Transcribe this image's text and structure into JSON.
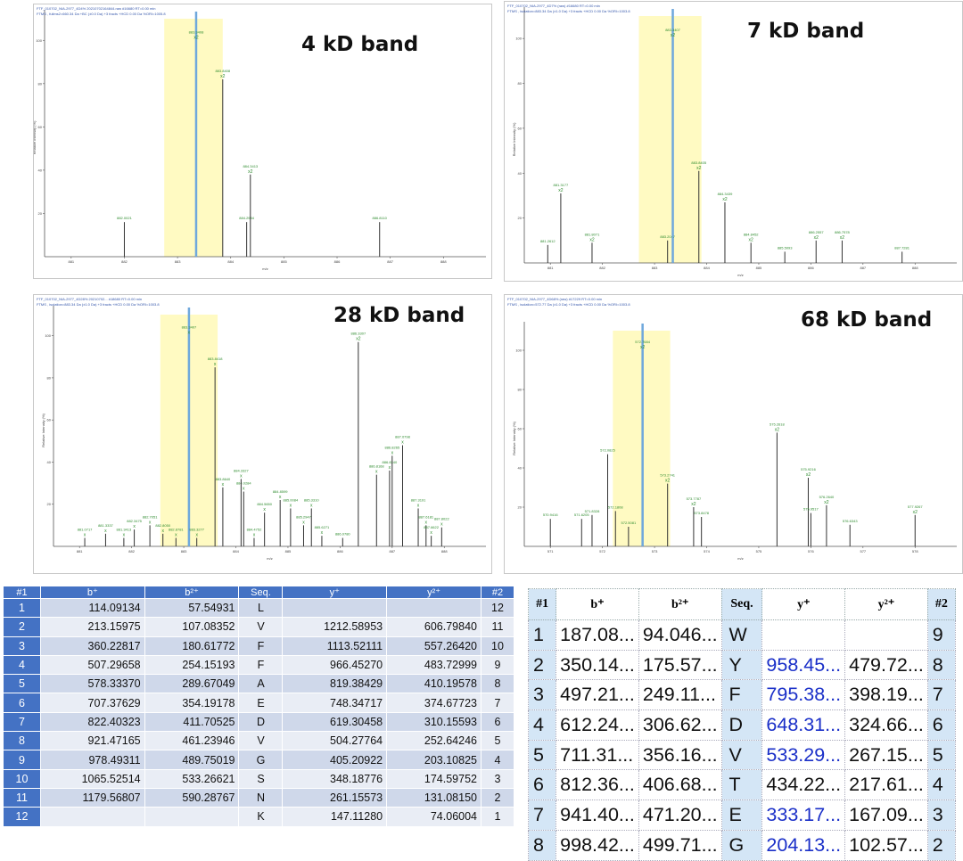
{
  "panels": [
    {
      "title": "4 kD band",
      "header_lines": [
        "FTF_010702_NIA-2977_4D4% 20210702164844.raw #16680 RT=0.00 min",
        "FTMS , fullms2=660.34 Da +BC (±0.0 Da) +3 fracts +HCD 0.00 Da %ORI=1005.8"
      ],
      "chart_data": {
        "type": "bar",
        "title": "4 kD band",
        "xlim": [
          880.5,
          888.8
        ],
        "ylim": [
          0,
          110
        ],
        "xlabel": "m/z",
        "ylabel": "Relative Intensity (%)",
        "yticks": [
          20,
          40,
          60,
          80,
          100
        ],
        "xticks": [
          881,
          882,
          883,
          884,
          885,
          886,
          887,
          888
        ],
        "highlight": [
          882.75,
          883.85
        ],
        "highlight_color": "#fffac2",
        "precursor": 883.35,
        "peaks": [
          {
            "x": 882.0,
            "y": 16,
            "label": "882.0021"
          },
          {
            "x": 883.35,
            "y": 100,
            "label": "883.3408",
            "ion": "x2"
          },
          {
            "x": 883.85,
            "y": 82,
            "label": "883.8408",
            "ion": "x2"
          },
          {
            "x": 884.3,
            "y": 16,
            "label": "884.2984"
          },
          {
            "x": 884.37,
            "y": 38,
            "label": "884.3413",
            "ion": "x2"
          },
          {
            "x": 886.8,
            "y": 16,
            "label": "886.8110"
          }
        ]
      }
    },
    {
      "title": "7 kD band",
      "header_lines": [
        "FTF_010702_NIA-2977_4D7% (raw) #16680 RT=0.00 min",
        "FTMS , isolation=883.34 Da (±1.0 Da) +3 fracts +HCD 0.00 Da %ORI=1003.8"
      ],
      "chart_data": {
        "type": "bar",
        "title": "7 kD band",
        "xlim": [
          880.5,
          888.8
        ],
        "ylim": [
          0,
          110
        ],
        "xlabel": "m/z",
        "ylabel": "Relative Intensity (%)",
        "yticks": [
          20,
          40,
          60,
          80,
          100
        ],
        "xticks": [
          881,
          882,
          883,
          884,
          885,
          886,
          887,
          888
        ],
        "highlight": [
          882.7,
          883.9
        ],
        "highlight_color": "#fffac2",
        "precursor": 883.35,
        "peaks": [
          {
            "x": 880.95,
            "y": 8,
            "label": "881.2612"
          },
          {
            "x": 881.2,
            "y": 31,
            "label": "881.3177",
            "ion": "x2"
          },
          {
            "x": 881.8,
            "y": 9,
            "label": "881.8071",
            "ion": "x2"
          },
          {
            "x": 883.25,
            "y": 10,
            "label": "883.2047"
          },
          {
            "x": 883.35,
            "y": 100,
            "label": "883.3407",
            "ion": "x2"
          },
          {
            "x": 883.85,
            "y": 41,
            "label": "883.8405",
            "ion": "x2"
          },
          {
            "x": 884.35,
            "y": 27,
            "label": "884.3439",
            "ion": "x2"
          },
          {
            "x": 884.85,
            "y": 9,
            "label": "884.8452",
            "ion": "x2"
          },
          {
            "x": 885.5,
            "y": 5,
            "label": "885.5093"
          },
          {
            "x": 886.1,
            "y": 10,
            "label": "886.2557",
            "ion": "x2"
          },
          {
            "x": 886.6,
            "y": 10,
            "label": "886.7578",
            "ion": "x2"
          },
          {
            "x": 887.75,
            "y": 5,
            "label": "887.7281"
          }
        ]
      }
    },
    {
      "title": "28 kD band",
      "header_lines": [
        "FTF_010702_NIA-2977_4D28% 20210702... #18680 RT=0.00 min",
        "FTMS , isolation=883.34 Da (±1.0 Da) +3 fracts +HCD 0.00 Da %ORI=1003.8"
      ],
      "chart_data": {
        "type": "bar",
        "title": "28 kD band",
        "xlim": [
          880.5,
          888.8
        ],
        "ylim": [
          0,
          110
        ],
        "xlabel": "m/z",
        "ylabel": "Relative Intensity (%)",
        "yticks": [
          20,
          40,
          60,
          80,
          100
        ],
        "xticks": [
          881,
          882,
          883,
          884,
          885,
          886,
          887,
          888
        ],
        "highlight": [
          882.55,
          883.65
        ],
        "highlight_color": "#fffac2",
        "precursor": 883.1,
        "peaks": [
          {
            "x": 881.1,
            "y": 4,
            "label": "881.0717",
            "ion": "x"
          },
          {
            "x": 881.5,
            "y": 6,
            "label": "881.3337",
            "ion": "x"
          },
          {
            "x": 881.85,
            "y": 4,
            "label": "881.3413",
            "ion": "x"
          },
          {
            "x": 882.05,
            "y": 8,
            "label": "882.3475",
            "ion": "x"
          },
          {
            "x": 882.35,
            "y": 10,
            "label": "882.7051",
            "ion": "x"
          },
          {
            "x": 882.6,
            "y": 6,
            "label": "882.8050",
            "ion": "x"
          },
          {
            "x": 882.85,
            "y": 4,
            "label": "882.8781",
            "ion": "x"
          },
          {
            "x": 883.1,
            "y": 100,
            "label": "883.3407",
            "ion": "x"
          },
          {
            "x": 883.25,
            "y": 4,
            "label": "883.3277",
            "ion": "x"
          },
          {
            "x": 883.6,
            "y": 85,
            "label": "883.8418",
            "ion": "x"
          },
          {
            "x": 883.75,
            "y": 28,
            "label": "883.8640",
            "ion": "x"
          },
          {
            "x": 884.15,
            "y": 26,
            "label": "884.0284",
            "ion": "x"
          },
          {
            "x": 884.1,
            "y": 32,
            "label": "884.3327",
            "ion": "x"
          },
          {
            "x": 884.35,
            "y": 4,
            "label": "884.4752",
            "ion": "x"
          },
          {
            "x": 884.55,
            "y": 16,
            "label": "884.5650",
            "ion": "x"
          },
          {
            "x": 884.85,
            "y": 22,
            "label": "884.8599",
            "ion": "x"
          },
          {
            "x": 885.05,
            "y": 18,
            "label": "885.0084",
            "ion": "x"
          },
          {
            "x": 885.3,
            "y": 10,
            "label": "885.2947",
            "ion": "x"
          },
          {
            "x": 885.45,
            "y": 18,
            "label": "885.3310",
            "ion": "x"
          },
          {
            "x": 885.65,
            "y": 5,
            "label": "885.6271",
            "ion": "x"
          },
          {
            "x": 886.05,
            "y": 4,
            "label": "886.0780"
          },
          {
            "x": 886.35,
            "y": 97,
            "label": "886.3307",
            "ion": "x2"
          },
          {
            "x": 886.7,
            "y": 34,
            "label": "886.8168",
            "ion": "x"
          },
          {
            "x": 886.95,
            "y": 36,
            "label": "886.8340",
            "ion": "x"
          },
          {
            "x": 887.0,
            "y": 43,
            "label": "886.8265",
            "ion": "x"
          },
          {
            "x": 887.2,
            "y": 48,
            "label": "887.0798",
            "ion": "x"
          },
          {
            "x": 887.5,
            "y": 18,
            "label": "887.3191",
            "ion": "x"
          },
          {
            "x": 887.65,
            "y": 10,
            "label": "887.6181",
            "ion": "x"
          },
          {
            "x": 887.75,
            "y": 5,
            "label": "887.6622",
            "ion": "x"
          },
          {
            "x": 887.95,
            "y": 9,
            "label": "887.8022",
            "ion": "x"
          }
        ]
      }
    },
    {
      "title": "68 kD band",
      "header_lines": [
        "FTF_010702_NIA-2977_4D68% (raw) #17229 RT=0.00 min",
        "FTMS , isolation=572.77 Da (±1.0 Da) +3 fracts +HCD 0.00 Da %ORI=1003.8"
      ],
      "chart_data": {
        "type": "bar",
        "title": "68 kD band",
        "xlim": [
          570.5,
          578.8
        ],
        "ylim": [
          0,
          110
        ],
        "xlabel": "m/z",
        "ylabel": "Relative Intensity (%)",
        "yticks": [
          20,
          40,
          60,
          80,
          100
        ],
        "xticks": [
          571,
          572,
          573,
          574,
          575,
          576,
          577,
          578
        ],
        "highlight": [
          572.2,
          573.3
        ],
        "highlight_color": "#fffac2",
        "precursor": 572.77,
        "peaks": [
          {
            "x": 571.0,
            "y": 14,
            "label": "570.9416"
          },
          {
            "x": 571.6,
            "y": 14,
            "label": "571.6205"
          },
          {
            "x": 571.8,
            "y": 16,
            "label": "571.8328"
          },
          {
            "x": 572.1,
            "y": 47,
            "label": "572.0825"
          },
          {
            "x": 572.25,
            "y": 18,
            "label": "572.1808"
          },
          {
            "x": 572.5,
            "y": 10,
            "label": "572.5081"
          },
          {
            "x": 572.77,
            "y": 100,
            "label": "572.7684",
            "ion": "x2"
          },
          {
            "x": 573.25,
            "y": 32,
            "label": "573.2741",
            "ion": "x2"
          },
          {
            "x": 573.75,
            "y": 20,
            "label": "573.7787",
            "ion": "x2"
          },
          {
            "x": 573.9,
            "y": 15,
            "label": "573.8478"
          },
          {
            "x": 575.35,
            "y": 58,
            "label": "575.2618",
            "ion": "x2"
          },
          {
            "x": 575.95,
            "y": 35,
            "label": "575.9216",
            "ion": "x2"
          },
          {
            "x": 576.0,
            "y": 17,
            "label": "575.9517"
          },
          {
            "x": 576.3,
            "y": 21,
            "label": "576.2640",
            "ion": "x2"
          },
          {
            "x": 576.75,
            "y": 11,
            "label": "576.6343"
          },
          {
            "x": 578.0,
            "y": 16,
            "label": "577.9267",
            "ion": "x2"
          }
        ]
      }
    }
  ],
  "left_table": {
    "headers": [
      "#1",
      "b⁺",
      "b²⁺",
      "Seq.",
      "y⁺",
      "y²⁺",
      "#2"
    ],
    "rows": [
      [
        "1",
        "114.09134",
        "57.54931",
        "L",
        "",
        "",
        "12"
      ],
      [
        "2",
        "213.15975",
        "107.08352",
        "V",
        "1212.58953",
        "606.79840",
        "11"
      ],
      [
        "3",
        "360.22817",
        "180.61772",
        "F",
        "1113.52111",
        "557.26420",
        "10"
      ],
      [
        "4",
        "507.29658",
        "254.15193",
        "F",
        "966.45270",
        "483.72999",
        "9"
      ],
      [
        "5",
        "578.33370",
        "289.67049",
        "A",
        "819.38429",
        "410.19578",
        "8"
      ],
      [
        "6",
        "707.37629",
        "354.19178",
        "E",
        "748.34717",
        "374.67723",
        "7"
      ],
      [
        "7",
        "822.40323",
        "411.70525",
        "D",
        "619.30458",
        "310.15593",
        "6"
      ],
      [
        "8",
        "921.47165",
        "461.23946",
        "V",
        "504.27764",
        "252.64246",
        "5"
      ],
      [
        "9",
        "978.49311",
        "489.75019",
        "G",
        "405.20922",
        "203.10825",
        "4"
      ],
      [
        "10",
        "1065.52514",
        "533.26621",
        "S",
        "348.18776",
        "174.59752",
        "3"
      ],
      [
        "11",
        "1179.56807",
        "590.28767",
        "N",
        "261.15573",
        "131.08150",
        "2"
      ],
      [
        "12",
        "",
        "",
        "K",
        "147.11280",
        "74.06004",
        "1"
      ]
    ]
  },
  "right_table": {
    "headers": [
      "#1",
      "b⁺",
      "b²⁺",
      "Seq.",
      "y⁺",
      "y²⁺",
      "#2"
    ],
    "rows": [
      [
        "1",
        "187.08...",
        "94.046...",
        "W",
        "",
        "",
        "9"
      ],
      [
        "2",
        "350.14...",
        "175.57...",
        "Y",
        "958.45...",
        "479.72...",
        "8"
      ],
      [
        "3",
        "497.21...",
        "249.11...",
        "F",
        "795.38...",
        "398.19...",
        "7"
      ],
      [
        "4",
        "612.24...",
        "306.62...",
        "D",
        "648.31...",
        "324.66...",
        "6"
      ],
      [
        "5",
        "711.31...",
        "356.16...",
        "V",
        "533.29...",
        "267.15...",
        "5"
      ],
      [
        "6",
        "812.36...",
        "406.68...",
        "T",
        "434.22...",
        "217.61...",
        "4"
      ],
      [
        "7",
        "941.40...",
        "471.20...",
        "E",
        "333.17...",
        "167.09...",
        "3"
      ],
      [
        "8",
        "998.42...",
        "499.71...",
        "G",
        "204.13...",
        "102.57...",
        "2"
      ]
    ],
    "blue_y_rows": [
      1,
      2,
      3,
      4,
      6,
      7
    ]
  },
  "colors": {
    "peak": "#333333",
    "precursor": "#6fa8dc",
    "annotation": "#2e8b2e",
    "table_header": "#4472c4",
    "blue_text": "#1a2fc8"
  }
}
